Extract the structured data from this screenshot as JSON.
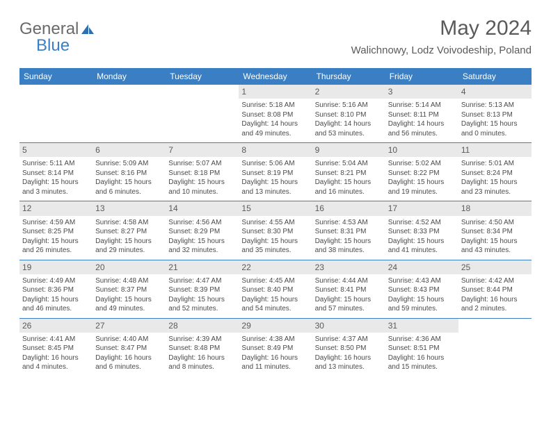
{
  "logo": {
    "text1": "General",
    "text2": "Blue"
  },
  "header": {
    "month_title": "May 2024",
    "location": "Walichnowy, Lodz Voivodeship, Poland"
  },
  "colors": {
    "header_bg": "#3a7fc4",
    "daynum_bg": "#e9e9e9",
    "text": "#4a4a4a",
    "rule": "#3a7fc4"
  },
  "day_names": [
    "Sunday",
    "Monday",
    "Tuesday",
    "Wednesday",
    "Thursday",
    "Friday",
    "Saturday"
  ],
  "weeks": [
    [
      {
        "n": "",
        "sr": "",
        "ss": "",
        "dl": ""
      },
      {
        "n": "",
        "sr": "",
        "ss": "",
        "dl": ""
      },
      {
        "n": "",
        "sr": "",
        "ss": "",
        "dl": ""
      },
      {
        "n": "1",
        "sr": "Sunrise: 5:18 AM",
        "ss": "Sunset: 8:08 PM",
        "dl": "Daylight: 14 hours and 49 minutes."
      },
      {
        "n": "2",
        "sr": "Sunrise: 5:16 AM",
        "ss": "Sunset: 8:10 PM",
        "dl": "Daylight: 14 hours and 53 minutes."
      },
      {
        "n": "3",
        "sr": "Sunrise: 5:14 AM",
        "ss": "Sunset: 8:11 PM",
        "dl": "Daylight: 14 hours and 56 minutes."
      },
      {
        "n": "4",
        "sr": "Sunrise: 5:13 AM",
        "ss": "Sunset: 8:13 PM",
        "dl": "Daylight: 15 hours and 0 minutes."
      }
    ],
    [
      {
        "n": "5",
        "sr": "Sunrise: 5:11 AM",
        "ss": "Sunset: 8:14 PM",
        "dl": "Daylight: 15 hours and 3 minutes."
      },
      {
        "n": "6",
        "sr": "Sunrise: 5:09 AM",
        "ss": "Sunset: 8:16 PM",
        "dl": "Daylight: 15 hours and 6 minutes."
      },
      {
        "n": "7",
        "sr": "Sunrise: 5:07 AM",
        "ss": "Sunset: 8:18 PM",
        "dl": "Daylight: 15 hours and 10 minutes."
      },
      {
        "n": "8",
        "sr": "Sunrise: 5:06 AM",
        "ss": "Sunset: 8:19 PM",
        "dl": "Daylight: 15 hours and 13 minutes."
      },
      {
        "n": "9",
        "sr": "Sunrise: 5:04 AM",
        "ss": "Sunset: 8:21 PM",
        "dl": "Daylight: 15 hours and 16 minutes."
      },
      {
        "n": "10",
        "sr": "Sunrise: 5:02 AM",
        "ss": "Sunset: 8:22 PM",
        "dl": "Daylight: 15 hours and 19 minutes."
      },
      {
        "n": "11",
        "sr": "Sunrise: 5:01 AM",
        "ss": "Sunset: 8:24 PM",
        "dl": "Daylight: 15 hours and 23 minutes."
      }
    ],
    [
      {
        "n": "12",
        "sr": "Sunrise: 4:59 AM",
        "ss": "Sunset: 8:25 PM",
        "dl": "Daylight: 15 hours and 26 minutes."
      },
      {
        "n": "13",
        "sr": "Sunrise: 4:58 AM",
        "ss": "Sunset: 8:27 PM",
        "dl": "Daylight: 15 hours and 29 minutes."
      },
      {
        "n": "14",
        "sr": "Sunrise: 4:56 AM",
        "ss": "Sunset: 8:29 PM",
        "dl": "Daylight: 15 hours and 32 minutes."
      },
      {
        "n": "15",
        "sr": "Sunrise: 4:55 AM",
        "ss": "Sunset: 8:30 PM",
        "dl": "Daylight: 15 hours and 35 minutes."
      },
      {
        "n": "16",
        "sr": "Sunrise: 4:53 AM",
        "ss": "Sunset: 8:31 PM",
        "dl": "Daylight: 15 hours and 38 minutes."
      },
      {
        "n": "17",
        "sr": "Sunrise: 4:52 AM",
        "ss": "Sunset: 8:33 PM",
        "dl": "Daylight: 15 hours and 41 minutes."
      },
      {
        "n": "18",
        "sr": "Sunrise: 4:50 AM",
        "ss": "Sunset: 8:34 PM",
        "dl": "Daylight: 15 hours and 43 minutes."
      }
    ],
    [
      {
        "n": "19",
        "sr": "Sunrise: 4:49 AM",
        "ss": "Sunset: 8:36 PM",
        "dl": "Daylight: 15 hours and 46 minutes."
      },
      {
        "n": "20",
        "sr": "Sunrise: 4:48 AM",
        "ss": "Sunset: 8:37 PM",
        "dl": "Daylight: 15 hours and 49 minutes."
      },
      {
        "n": "21",
        "sr": "Sunrise: 4:47 AM",
        "ss": "Sunset: 8:39 PM",
        "dl": "Daylight: 15 hours and 52 minutes."
      },
      {
        "n": "22",
        "sr": "Sunrise: 4:45 AM",
        "ss": "Sunset: 8:40 PM",
        "dl": "Daylight: 15 hours and 54 minutes."
      },
      {
        "n": "23",
        "sr": "Sunrise: 4:44 AM",
        "ss": "Sunset: 8:41 PM",
        "dl": "Daylight: 15 hours and 57 minutes."
      },
      {
        "n": "24",
        "sr": "Sunrise: 4:43 AM",
        "ss": "Sunset: 8:43 PM",
        "dl": "Daylight: 15 hours and 59 minutes."
      },
      {
        "n": "25",
        "sr": "Sunrise: 4:42 AM",
        "ss": "Sunset: 8:44 PM",
        "dl": "Daylight: 16 hours and 2 minutes."
      }
    ],
    [
      {
        "n": "26",
        "sr": "Sunrise: 4:41 AM",
        "ss": "Sunset: 8:45 PM",
        "dl": "Daylight: 16 hours and 4 minutes."
      },
      {
        "n": "27",
        "sr": "Sunrise: 4:40 AM",
        "ss": "Sunset: 8:47 PM",
        "dl": "Daylight: 16 hours and 6 minutes."
      },
      {
        "n": "28",
        "sr": "Sunrise: 4:39 AM",
        "ss": "Sunset: 8:48 PM",
        "dl": "Daylight: 16 hours and 8 minutes."
      },
      {
        "n": "29",
        "sr": "Sunrise: 4:38 AM",
        "ss": "Sunset: 8:49 PM",
        "dl": "Daylight: 16 hours and 11 minutes."
      },
      {
        "n": "30",
        "sr": "Sunrise: 4:37 AM",
        "ss": "Sunset: 8:50 PM",
        "dl": "Daylight: 16 hours and 13 minutes."
      },
      {
        "n": "31",
        "sr": "Sunrise: 4:36 AM",
        "ss": "Sunset: 8:51 PM",
        "dl": "Daylight: 16 hours and 15 minutes."
      },
      {
        "n": "",
        "sr": "",
        "ss": "",
        "dl": ""
      }
    ]
  ]
}
